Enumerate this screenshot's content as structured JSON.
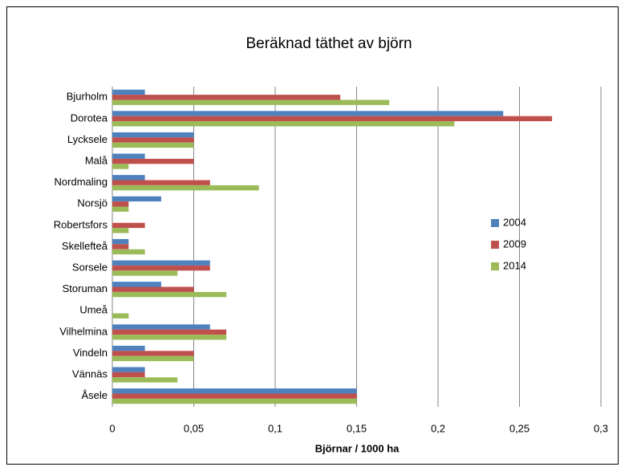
{
  "chart_data": {
    "type": "hbar",
    "title": "Beräknad täthet av björn",
    "x_label": "Björnar / 1000 ha",
    "categories": [
      "Bjurholm",
      "Dorotea",
      "Lycksele",
      "Malå",
      "Nordmaling",
      "Norsjö",
      "Robertsfors",
      "Skellefteå",
      "Sorsele",
      "Storuman",
      "Umeå",
      "Vilhelmina",
      "Vindeln",
      "Vännäs",
      "Åsele"
    ],
    "series": [
      {
        "name": "2004",
        "color": "#4f81bd",
        "values": [
          0.02,
          0.24,
          0.05,
          0.02,
          0.02,
          0.03,
          0,
          0.01,
          0.06,
          0.03,
          0,
          0.06,
          0.02,
          0.02,
          0.15
        ]
      },
      {
        "name": "2009",
        "color": "#c0504d",
        "values": [
          0.14,
          0.27,
          0.05,
          0.05,
          0.06,
          0.01,
          0.02,
          0.01,
          0.06,
          0.05,
          0,
          0.07,
          0.05,
          0.02,
          0.15
        ]
      },
      {
        "name": "2014",
        "color": "#9bbb59",
        "values": [
          0.17,
          0.21,
          0.05,
          0.01,
          0.09,
          0.01,
          0.01,
          0.02,
          0.04,
          0.07,
          0.01,
          0.07,
          0.05,
          0.04,
          0.15
        ]
      }
    ],
    "xlim": [
      0,
      0.3
    ],
    "xticks": [
      0,
      {
        "value": 0.05,
        "label": "0,05"
      },
      {
        "value": 0.1,
        "label": "0,1"
      },
      {
        "value": 0.15,
        "label": "0,15"
      },
      {
        "value": 0.2,
        "label": "0,2"
      },
      {
        "value": 0.25,
        "label": "0,25"
      },
      {
        "value": 0.3,
        "label": "0,3"
      }
    ],
    "grid": true,
    "legend": "right"
  }
}
